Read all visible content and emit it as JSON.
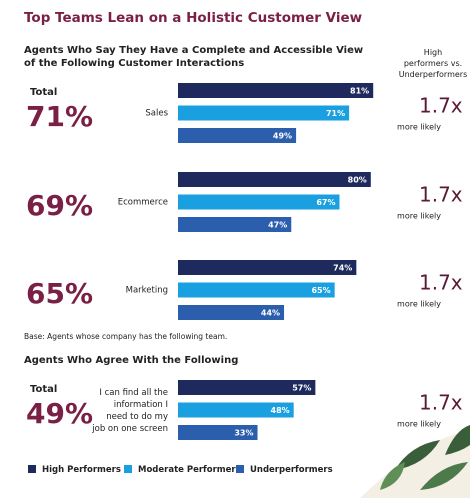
{
  "title": "Top Teams Lean on a Holistic Customer View",
  "chart_data": [
    {
      "type": "bar",
      "orientation": "horizontal",
      "subtitle": "Agents Who Say They Have a Complete and Accessible View\nof the Following Customer Interactions",
      "comparison_header": "High\nperformers vs.\nUnderperformers",
      "total_label": "Total",
      "categories": [
        "Sales",
        "Ecommerce",
        "Marketing"
      ],
      "totals": [
        71,
        69,
        65
      ],
      "total_labels": [
        "71%",
        "69%",
        "65%"
      ],
      "multipliers": [
        "1.7x",
        "1.7x",
        "1.7x"
      ],
      "multiplier_note": "more likely",
      "xlim": [
        0,
        100
      ],
      "series": [
        {
          "name": "High Performers",
          "color": "#1e2a5e",
          "values": [
            81,
            80,
            74
          ],
          "value_labels": [
            "81%",
            "80%",
            "74%"
          ]
        },
        {
          "name": "Moderate Performers",
          "color": "#1aa0e0",
          "values": [
            71,
            67,
            65
          ],
          "value_labels": [
            "71%",
            "67%",
            "65%"
          ]
        },
        {
          "name": "Underperformers",
          "color": "#2c5eae",
          "values": [
            49,
            47,
            44
          ],
          "value_labels": [
            "49%",
            "47%",
            "44%"
          ]
        }
      ],
      "note": "Base: Agents whose company has the following team."
    },
    {
      "type": "bar",
      "orientation": "horizontal",
      "subtitle": "Agents Who Agree With the Following",
      "total_label": "Total",
      "categories": [
        "I can find all the\ninformation I\nneed to do my\njob on one screen"
      ],
      "totals": [
        49
      ],
      "total_labels": [
        "49%"
      ],
      "multipliers": [
        "1.7x"
      ],
      "multiplier_note": "more likely",
      "xlim": [
        0,
        100
      ],
      "series": [
        {
          "color": "#1e2a5e",
          "values": [
            57
          ],
          "value_labels": [
            "57%"
          ]
        },
        {
          "color": "#1aa0e0",
          "values": [
            48
          ],
          "value_labels": [
            "48%"
          ]
        },
        {
          "color": "#2c5eae",
          "values": [
            33
          ],
          "value_labels": [
            "33%"
          ]
        }
      ]
    }
  ]
}
